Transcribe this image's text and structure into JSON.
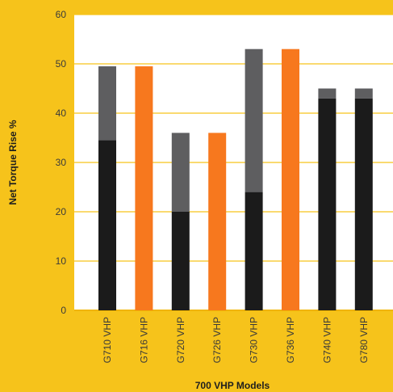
{
  "chart_data": {
    "type": "bar",
    "stacked": true,
    "xlabel": "700 VHP Models",
    "ylabel": "Net Torque Rise %",
    "ylim": [
      0,
      60
    ],
    "yticks": [
      0,
      10,
      20,
      30,
      40,
      50,
      60
    ],
    "grid": true,
    "legend": "none",
    "categories": [
      "G710 VHP",
      "G716 VHP",
      "G720 VHP",
      "G726 VHP",
      "G730 VHP",
      "G736 VHP",
      "G740 VHP",
      "G780 VHP"
    ],
    "series": [
      {
        "color": "#1b1b1b",
        "values": [
          34.5,
          0,
          20,
          0,
          24,
          0,
          43,
          43
        ]
      },
      {
        "color": "#5e5e60",
        "values": [
          15,
          0,
          16,
          0,
          29,
          0,
          2,
          2
        ]
      },
      {
        "color": "#f7781e",
        "values": [
          0,
          49.5,
          0,
          36,
          0,
          53,
          0,
          0
        ]
      }
    ]
  },
  "colors": {
    "background": "#f6c31b",
    "plot_area": "#ffffff",
    "gridline": "#f6c31b"
  }
}
